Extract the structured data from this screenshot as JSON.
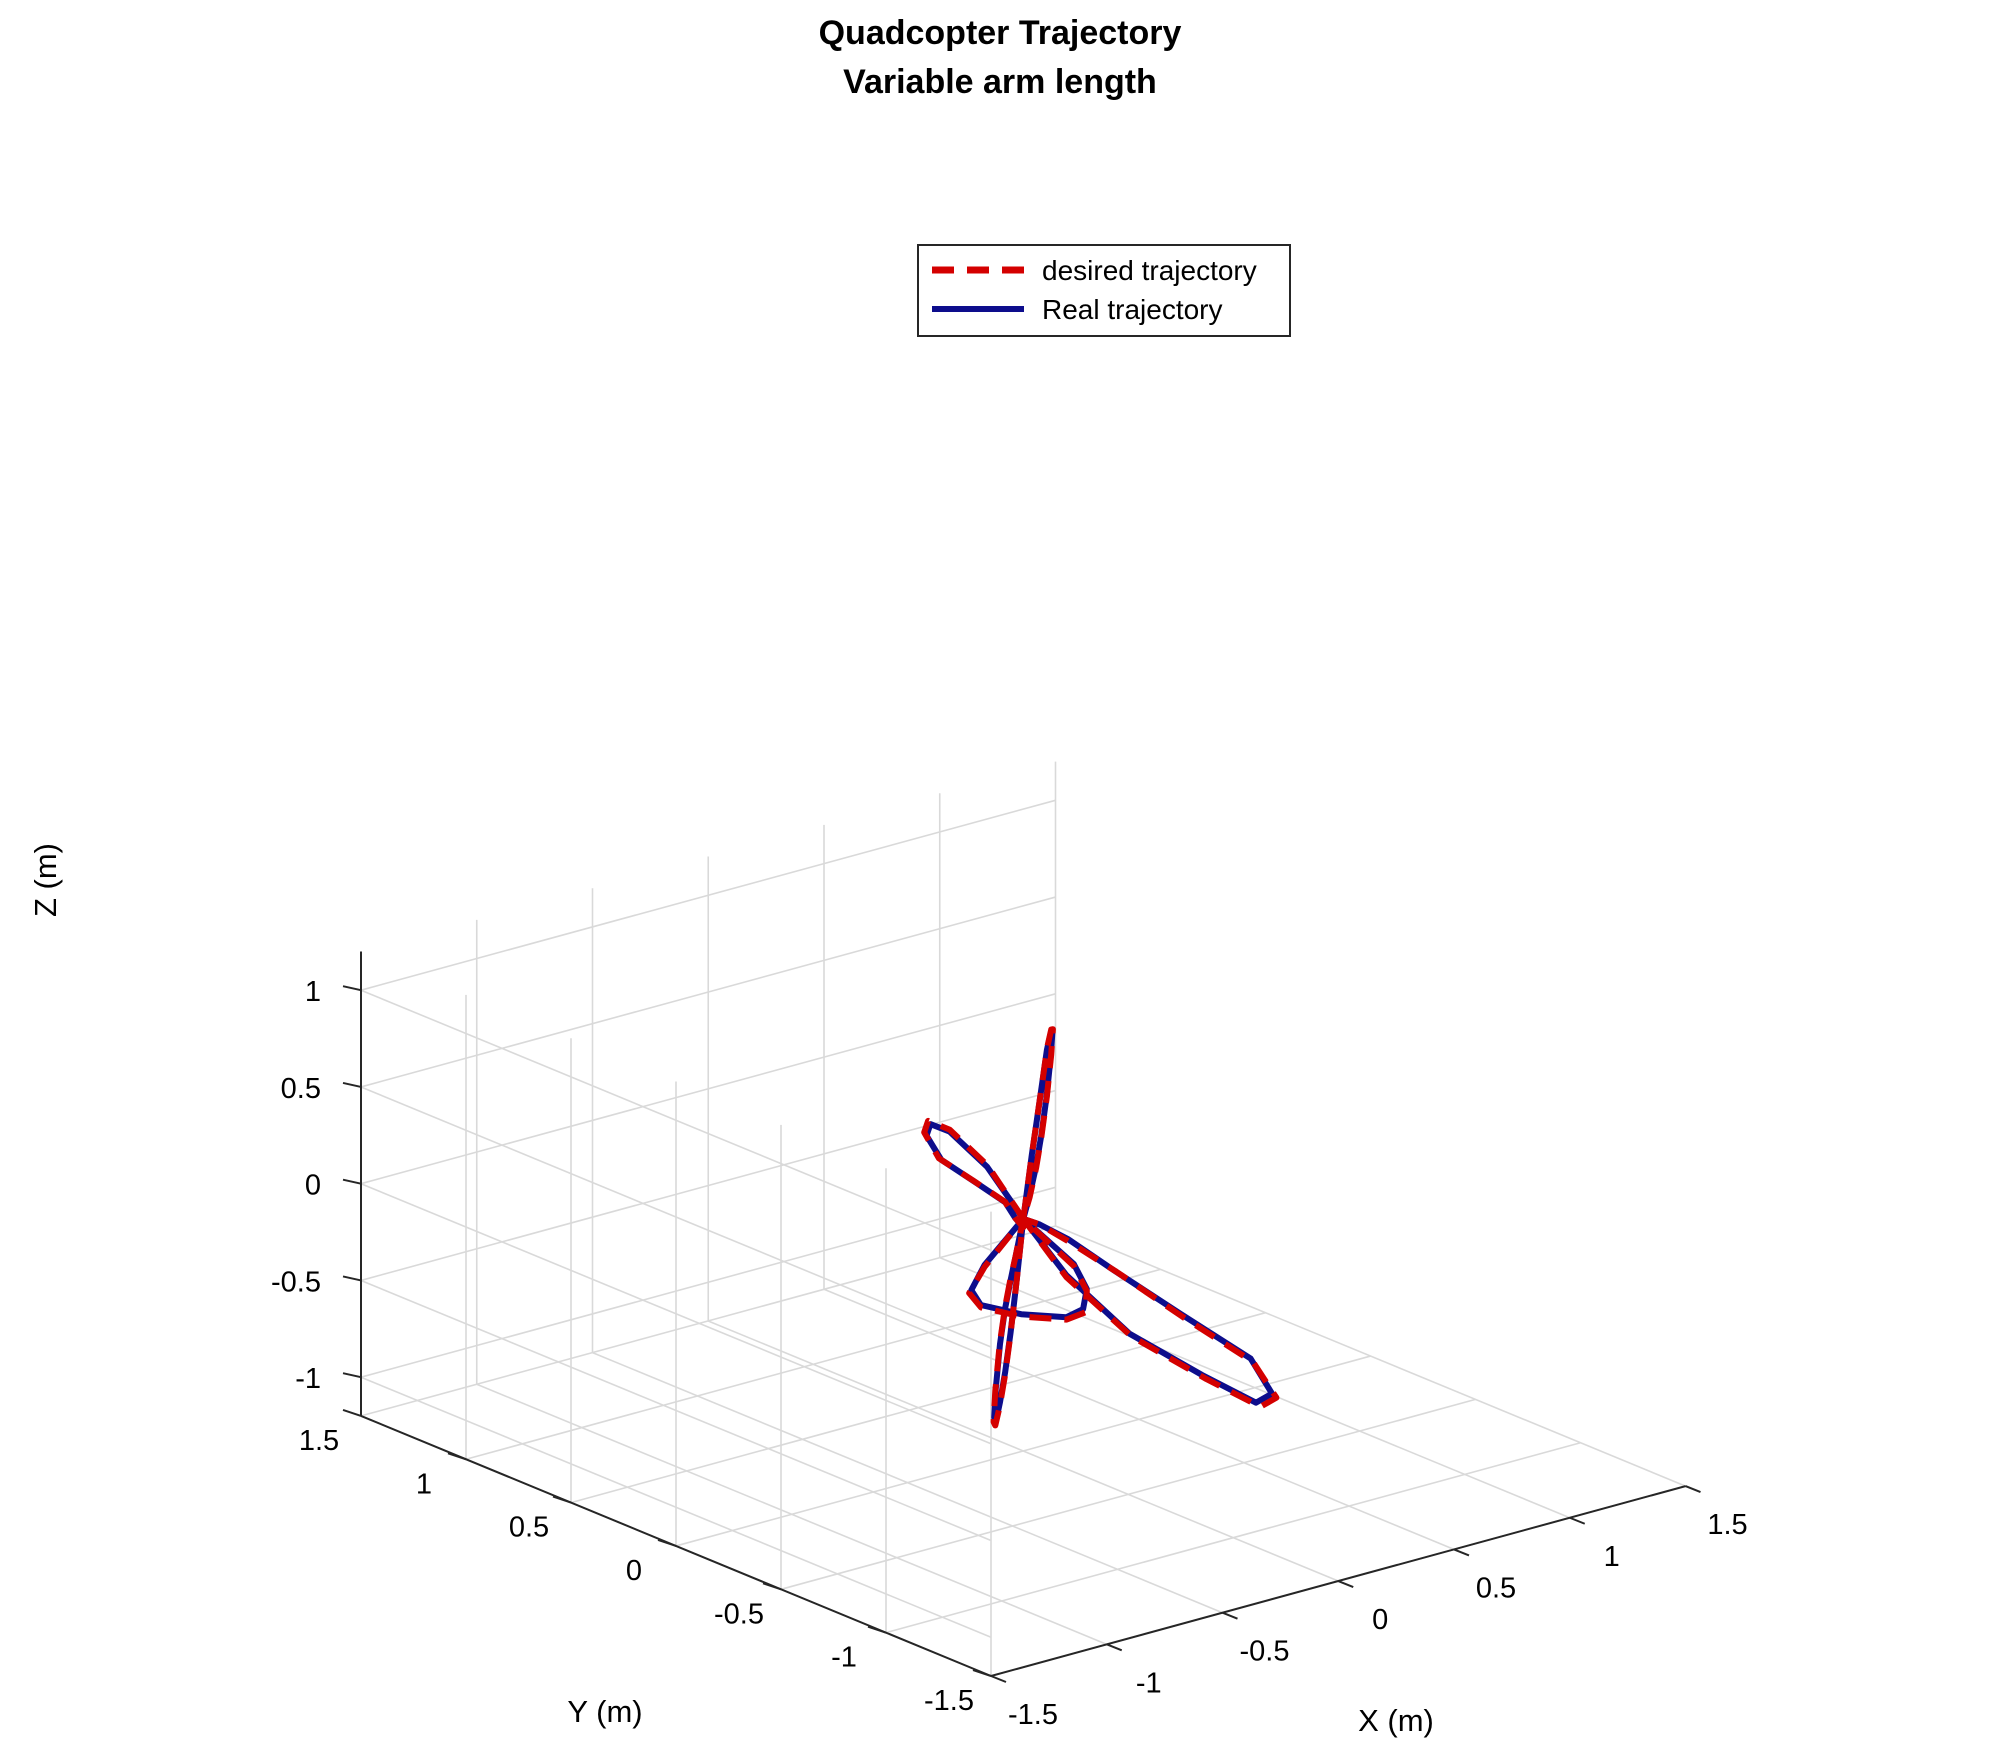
{
  "chart_data": {
    "type": "line",
    "projection": "3d",
    "title": "Quadcopter Trajectory",
    "subtitle": "Variable arm length",
    "xlabel": "X (m)",
    "ylabel": "Y (m)",
    "zlabel": "Z (m)",
    "xlim": [
      -1.5,
      1.5
    ],
    "ylim": [
      -1.5,
      1.5
    ],
    "zlim": [
      -1.2,
      1.2
    ],
    "xticks": [
      -1.5,
      -1,
      -0.5,
      0,
      0.5,
      1,
      1.5
    ],
    "yticks": [
      -1.5,
      -1,
      -0.5,
      0,
      0.5,
      1,
      1.5
    ],
    "zticks": [
      -1,
      -0.5,
      0,
      0.5,
      1
    ],
    "xtick_labels": [
      "-1.5",
      "-1",
      "-0.5",
      "0",
      "0.5",
      "1",
      "1.5"
    ],
    "ytick_labels": [
      "-1.5",
      "-1",
      "-0.5",
      "0",
      "0.5",
      "1",
      "1.5"
    ],
    "ztick_labels": [
      "-1",
      "-0.5",
      "0",
      "0.5",
      "1"
    ],
    "grid": true,
    "legend_position": "top-center",
    "series": [
      {
        "name": "desired trajectory",
        "style": "dashed",
        "color": "#d40000",
        "x": [
          0,
          0.4,
          0.62,
          0.88,
          1.12,
          1.3,
          1.38,
          1.3,
          1.1,
          0.85,
          0.6,
          0.3,
          0,
          -0.2,
          -0.38,
          -0.55,
          -0.72,
          -0.8,
          -0.7,
          -0.52,
          -0.3,
          -0.12,
          0,
          0.2,
          0.32,
          0.45,
          0.55,
          0.5,
          0.38,
          0.22,
          0.06,
          0,
          -0.35,
          -0.6,
          -0.85,
          -1.1,
          -1.3,
          -1.38,
          -1.3,
          -1.1,
          -0.85,
          -0.6,
          -0.3,
          0,
          0.05,
          0.15,
          0.32,
          0.48,
          0.64,
          0.72,
          0.6,
          0.42,
          0.22,
          0.08,
          0
        ],
        "y": [
          0,
          0.4,
          0.62,
          0.88,
          1.12,
          1.3,
          1.38,
          1.3,
          1.1,
          0.85,
          0.6,
          0.3,
          0,
          -0.22,
          -0.38,
          -0.52,
          -0.56,
          -0.48,
          -0.3,
          -0.12,
          0.02,
          0.04,
          0,
          -0.02,
          0.05,
          0.2,
          0.4,
          0.56,
          0.62,
          0.5,
          0.25,
          0,
          -0.35,
          -0.6,
          -0.85,
          -1.1,
          -1.3,
          -1.38,
          -1.3,
          -1.1,
          -0.85,
          -0.6,
          -0.3,
          0,
          -0.15,
          -0.35,
          -0.52,
          -0.6,
          -0.5,
          -0.3,
          -0.1,
          0.02,
          0.03,
          0.01,
          0
        ],
        "z": [
          0,
          0.02,
          0.02,
          0.02,
          0.02,
          -0.03,
          -0.09,
          -0.16,
          -0.22,
          -0.23,
          -0.2,
          -0.12,
          0,
          0.12,
          0.3,
          0.5,
          0.68,
          0.79,
          0.81,
          0.73,
          0.55,
          0.3,
          0,
          -0.3,
          -0.5,
          -0.72,
          -0.88,
          -0.92,
          -0.86,
          -0.68,
          -0.38,
          0,
          0.08,
          0.15,
          0.2,
          0.2,
          0.12,
          0.02,
          -0.06,
          -0.12,
          -0.15,
          -0.14,
          -0.08,
          0,
          -0.25,
          -0.5,
          -0.7,
          -0.86,
          -0.91,
          -0.84,
          -0.66,
          -0.42,
          -0.2,
          -0.06,
          0
        ]
      },
      {
        "name": "Real trajectory",
        "style": "solid",
        "color": "#0d0d8c",
        "x": [
          0,
          0.4,
          0.62,
          0.88,
          1.1,
          1.28,
          1.35,
          1.28,
          1.08,
          0.84,
          0.59,
          0.3,
          0,
          -0.2,
          -0.37,
          -0.54,
          -0.7,
          -0.78,
          -0.69,
          -0.51,
          -0.3,
          -0.12,
          0,
          0.2,
          0.32,
          0.44,
          0.54,
          0.49,
          0.37,
          0.22,
          0.06,
          0,
          -0.35,
          -0.59,
          -0.84,
          -1.08,
          -1.28,
          -1.35,
          -1.28,
          -1.08,
          -0.84,
          -0.59,
          -0.3,
          0,
          0.05,
          0.15,
          0.31,
          0.47,
          0.63,
          0.71,
          0.59,
          0.41,
          0.22,
          0.08,
          0
        ],
        "y": [
          0,
          0.4,
          0.62,
          0.88,
          1.1,
          1.28,
          1.35,
          1.28,
          1.08,
          0.84,
          0.59,
          0.3,
          0,
          -0.22,
          -0.37,
          -0.51,
          -0.55,
          -0.47,
          -0.3,
          -0.12,
          0.02,
          0.04,
          0,
          -0.02,
          0.05,
          0.2,
          0.39,
          0.55,
          0.61,
          0.49,
          0.25,
          0,
          -0.35,
          -0.59,
          -0.84,
          -1.08,
          -1.28,
          -1.35,
          -1.28,
          -1.08,
          -0.84,
          -0.59,
          -0.3,
          0,
          -0.15,
          -0.34,
          -0.51,
          -0.59,
          -0.49,
          -0.3,
          -0.1,
          0.02,
          0.03,
          0.01,
          0
        ],
        "z": [
          0,
          0.02,
          0.02,
          0.02,
          0.02,
          -0.03,
          -0.09,
          -0.15,
          -0.21,
          -0.22,
          -0.19,
          -0.11,
          0,
          0.12,
          0.29,
          0.49,
          0.66,
          0.77,
          0.79,
          0.71,
          0.54,
          0.29,
          0,
          -0.29,
          -0.49,
          -0.7,
          -0.86,
          -0.9,
          -0.84,
          -0.66,
          -0.37,
          0,
          0.08,
          0.14,
          0.19,
          0.19,
          0.11,
          0.02,
          -0.06,
          -0.11,
          -0.14,
          -0.13,
          -0.08,
          0,
          -0.24,
          -0.49,
          -0.68,
          -0.84,
          -0.89,
          -0.82,
          -0.64,
          -0.41,
          -0.19,
          -0.06,
          0
        ]
      }
    ],
    "colors": {
      "desired": "#d40000",
      "real": "#0d0d8c",
      "grid": "#d9d9d9",
      "axis": "#262626"
    }
  }
}
